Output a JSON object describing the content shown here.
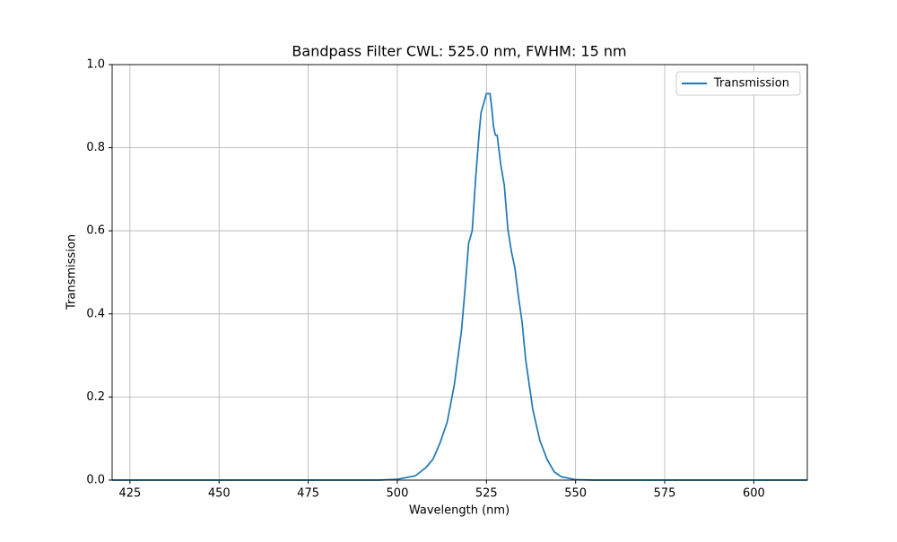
{
  "chart_data": {
    "type": "line",
    "title": "Bandpass Filter CWL: 525.0 nm, FWHM: 15 nm",
    "xlabel": "Wavelength (nm)",
    "ylabel": "Transmission",
    "x": [
      420,
      450,
      480,
      495,
      500,
      505,
      508,
      510,
      512,
      514,
      516,
      518,
      519,
      520,
      521,
      522,
      523,
      523.5,
      524,
      525,
      526,
      526.5,
      527,
      527.5,
      528,
      529,
      530,
      531,
      532,
      533,
      534,
      535,
      536,
      538,
      540,
      542,
      544,
      546,
      550,
      555,
      580,
      615
    ],
    "series": [
      {
        "name": "Transmission",
        "color": "#1f77b4",
        "values": [
          0,
          0,
          0,
          0,
          0.002,
          0.01,
          0.03,
          0.05,
          0.09,
          0.14,
          0.23,
          0.36,
          0.46,
          0.57,
          0.6,
          0.73,
          0.84,
          0.885,
          0.9,
          0.93,
          0.93,
          0.895,
          0.85,
          0.83,
          0.83,
          0.76,
          0.71,
          0.605,
          0.55,
          0.51,
          0.44,
          0.38,
          0.29,
          0.17,
          0.095,
          0.05,
          0.02,
          0.008,
          0.001,
          0,
          0,
          0
        ]
      }
    ],
    "xlim": [
      420,
      615
    ],
    "ylim": [
      0,
      1
    ],
    "xticks": [
      425,
      450,
      475,
      500,
      525,
      550,
      575,
      600
    ],
    "yticks": [
      {
        "value": 0,
        "label": "0.0"
      },
      {
        "value": 0.2,
        "label": "0.2"
      },
      {
        "value": 0.4,
        "label": "0.4"
      },
      {
        "value": 0.6,
        "label": "0.6"
      },
      {
        "value": 0.8,
        "label": "0.8"
      },
      {
        "value": 1,
        "label": "1.0"
      }
    ],
    "grid": true,
    "legend": "upper right"
  }
}
